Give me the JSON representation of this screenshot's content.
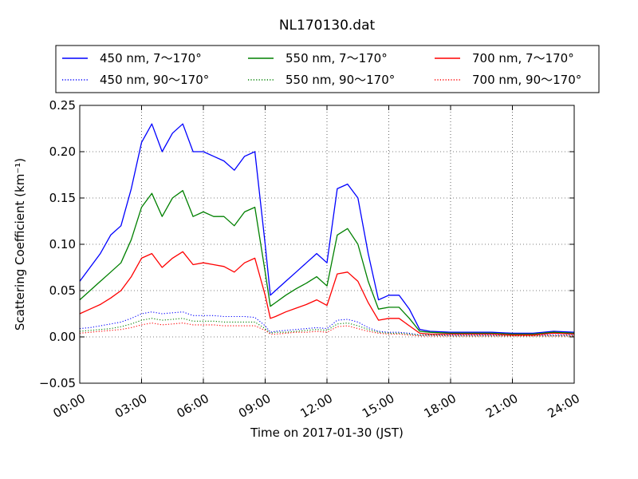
{
  "chart_data": {
    "type": "line",
    "title": "NL170130.dat",
    "xlabel": "Time on 2017-01-30 (JST)",
    "ylabel": "Scattering Coefficient (km⁻¹)",
    "xlim": [
      "00:00",
      "24:00"
    ],
    "ylim": [
      -0.05,
      0.25
    ],
    "xticks": [
      "00:00",
      "03:00",
      "06:00",
      "09:00",
      "12:00",
      "15:00",
      "18:00",
      "21:00",
      "24:00"
    ],
    "yticks": [
      "−0.05",
      "0.00",
      "0.05",
      "0.10",
      "0.15",
      "0.20",
      "0.25"
    ],
    "grid": true,
    "legend_position": "top-center",
    "x": [
      "00:00",
      "00:30",
      "01:00",
      "01:30",
      "02:00",
      "02:30",
      "03:00",
      "03:30",
      "04:00",
      "04:30",
      "05:00",
      "05:30",
      "06:00",
      "06:30",
      "07:00",
      "07:30",
      "08:00",
      "08:30",
      "09:00",
      "09:15",
      "09:30",
      "10:00",
      "10:30",
      "11:00",
      "11:30",
      "12:00",
      "12:30",
      "13:00",
      "13:30",
      "14:00",
      "14:30",
      "15:00",
      "15:30",
      "16:00",
      "16:30",
      "17:00",
      "18:00",
      "19:00",
      "20:00",
      "21:00",
      "22:00",
      "23:00",
      "24:00"
    ],
    "series": [
      {
        "name": "450 nm, 7～170°",
        "color": "#0000ff",
        "style": "solid",
        "values": [
          0.06,
          0.075,
          0.09,
          0.11,
          0.12,
          0.16,
          0.21,
          0.23,
          0.2,
          0.22,
          0.23,
          0.2,
          0.2,
          0.195,
          0.19,
          0.18,
          0.195,
          0.2,
          0.1,
          0.045,
          0.05,
          0.06,
          0.07,
          0.08,
          0.09,
          0.08,
          0.16,
          0.165,
          0.15,
          0.09,
          0.04,
          0.045,
          0.045,
          0.03,
          0.008,
          0.006,
          0.005,
          0.005,
          0.005,
          0.004,
          0.004,
          0.006,
          0.005
        ]
      },
      {
        "name": "450 nm, 90～170°",
        "color": "#0000ff",
        "style": "dotted",
        "values": [
          0.009,
          0.01,
          0.012,
          0.014,
          0.016,
          0.02,
          0.025,
          0.027,
          0.025,
          0.026,
          0.027,
          0.023,
          0.023,
          0.023,
          0.022,
          0.022,
          0.022,
          0.021,
          0.012,
          0.005,
          0.006,
          0.007,
          0.008,
          0.009,
          0.01,
          0.009,
          0.018,
          0.019,
          0.016,
          0.01,
          0.006,
          0.005,
          0.005,
          0.004,
          0.002,
          0.002,
          0.002,
          0.002,
          0.002,
          0.002,
          0.002,
          0.002,
          0.002
        ]
      },
      {
        "name": "550 nm, 7～170°",
        "color": "#008000",
        "style": "solid",
        "values": [
          0.04,
          0.05,
          0.06,
          0.07,
          0.08,
          0.105,
          0.14,
          0.155,
          0.13,
          0.15,
          0.158,
          0.13,
          0.135,
          0.13,
          0.13,
          0.12,
          0.135,
          0.14,
          0.07,
          0.033,
          0.037,
          0.045,
          0.052,
          0.058,
          0.065,
          0.055,
          0.11,
          0.117,
          0.1,
          0.06,
          0.03,
          0.032,
          0.032,
          0.02,
          0.006,
          0.005,
          0.004,
          0.004,
          0.004,
          0.003,
          0.003,
          0.005,
          0.004
        ]
      },
      {
        "name": "550 nm, 90～170°",
        "color": "#008000",
        "style": "dotted",
        "values": [
          0.006,
          0.007,
          0.008,
          0.009,
          0.011,
          0.014,
          0.018,
          0.02,
          0.018,
          0.019,
          0.02,
          0.017,
          0.017,
          0.017,
          0.016,
          0.016,
          0.016,
          0.016,
          0.009,
          0.004,
          0.005,
          0.005,
          0.006,
          0.007,
          0.008,
          0.007,
          0.014,
          0.015,
          0.012,
          0.008,
          0.005,
          0.004,
          0.004,
          0.003,
          0.002,
          0.002,
          0.001,
          0.001,
          0.001,
          0.001,
          0.001,
          0.001,
          0.001
        ]
      },
      {
        "name": "700 nm, 7～170°",
        "color": "#ff0000",
        "style": "solid",
        "values": [
          0.025,
          0.03,
          0.035,
          0.042,
          0.05,
          0.065,
          0.085,
          0.09,
          0.075,
          0.085,
          0.092,
          0.078,
          0.08,
          0.078,
          0.076,
          0.07,
          0.08,
          0.085,
          0.045,
          0.02,
          0.022,
          0.027,
          0.031,
          0.035,
          0.04,
          0.034,
          0.068,
          0.07,
          0.06,
          0.037,
          0.018,
          0.02,
          0.02,
          0.012,
          0.004,
          0.003,
          0.003,
          0.003,
          0.003,
          0.002,
          0.002,
          0.004,
          0.003
        ]
      },
      {
        "name": "700 nm, 90～170°",
        "color": "#ff0000",
        "style": "dotted",
        "values": [
          0.004,
          0.005,
          0.006,
          0.007,
          0.008,
          0.01,
          0.013,
          0.015,
          0.013,
          0.014,
          0.015,
          0.013,
          0.013,
          0.013,
          0.012,
          0.012,
          0.012,
          0.012,
          0.007,
          0.003,
          0.003,
          0.004,
          0.005,
          0.005,
          0.006,
          0.005,
          0.011,
          0.012,
          0.009,
          0.006,
          0.004,
          0.003,
          0.003,
          0.002,
          0.001,
          0.001,
          0.001,
          0.001,
          0.001,
          0.001,
          0.001,
          0.001,
          0.001
        ]
      }
    ]
  }
}
